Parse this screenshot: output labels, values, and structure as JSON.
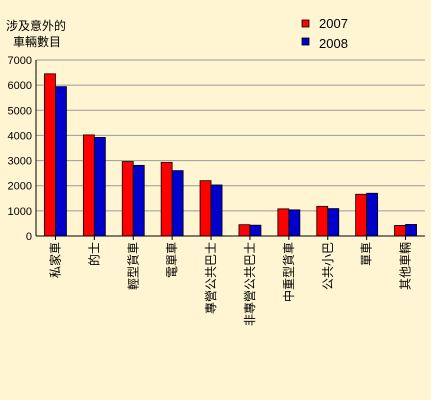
{
  "chart_data": {
    "type": "bar",
    "ylabel": [
      "涉及意外的",
      "車輛數目"
    ],
    "ylim": [
      0,
      7000
    ],
    "yticks": [
      0,
      1000,
      2000,
      3000,
      4000,
      5000,
      6000,
      7000
    ],
    "grid": true,
    "legend_position": "top-right",
    "categories": [
      "私家車",
      "的士",
      "輕型貨車",
      "電單車",
      "專營公共巴士",
      "非專營公共巴士",
      "中重型貨車",
      "公共小巴",
      "單車",
      "其他車輛"
    ],
    "series": [
      {
        "name": "2007",
        "color": "#FF0000",
        "values": [
          6450,
          4020,
          2960,
          2930,
          2200,
          450,
          1080,
          1180,
          1660,
          420
        ]
      },
      {
        "name": "2008",
        "color": "#0000CC",
        "values": [
          5940,
          3920,
          2810,
          2600,
          2030,
          430,
          1040,
          1090,
          1700,
          460
        ]
      }
    ]
  }
}
